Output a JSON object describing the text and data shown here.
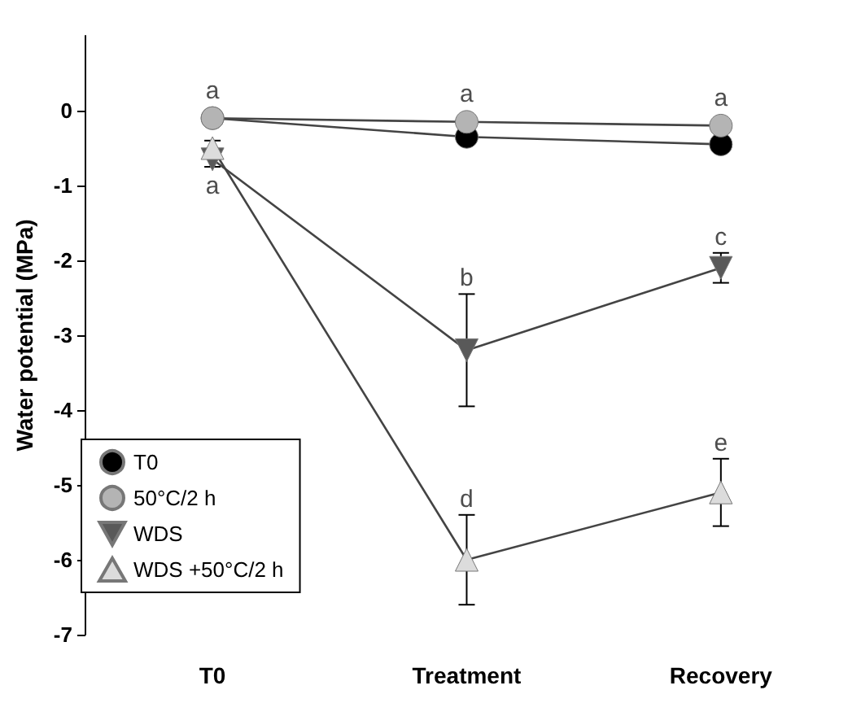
{
  "chart_data": {
    "type": "line",
    "ylabel": "Water potential (MPa)",
    "categories": [
      "T0",
      "Treatment",
      "Recovery"
    ],
    "series": [
      {
        "name": "T0",
        "color": "#000000",
        "marker": "circle",
        "values": [
          -0.1,
          -0.35,
          -0.45
        ]
      },
      {
        "name": "50°C/2 h",
        "color": "#b4b4b4",
        "marker": "circle",
        "values": [
          -0.1,
          -0.15,
          -0.2
        ]
      },
      {
        "name": "WDS",
        "color": "#595959",
        "marker": "triangle-down",
        "values": [
          -0.65,
          -3.2,
          -2.1
        ],
        "errors": [
          0.1,
          0.75,
          0.2
        ]
      },
      {
        "name": "WDS +50°C/2 h",
        "color": "#dcdcdc",
        "marker": "triangle",
        "values": [
          -0.5,
          -6.0,
          -5.1
        ],
        "errors": [
          0.1,
          0.6,
          0.45
        ]
      }
    ],
    "ylim": [
      -7,
      1
    ],
    "yticks": [
      0,
      -1,
      -2,
      -3,
      -4,
      -5,
      -6,
      -7
    ],
    "annotations": [
      {
        "text": "a",
        "x": "T0",
        "y": -0.1
      },
      {
        "text": "a",
        "x": "Treatment",
        "y": -0.15
      },
      {
        "text": "a",
        "x": "Recovery",
        "y": -0.2
      },
      {
        "text": "a",
        "x": "T0",
        "y": -0.65
      },
      {
        "text": "b",
        "x": "Treatment",
        "y": -3.2
      },
      {
        "text": "c",
        "x": "Recovery",
        "y": -2.1
      },
      {
        "text": "d",
        "x": "Treatment",
        "y": -6.0
      },
      {
        "text": "e",
        "x": "Recovery",
        "y": -5.1
      }
    ],
    "grid": false,
    "legend": "bottom left"
  }
}
